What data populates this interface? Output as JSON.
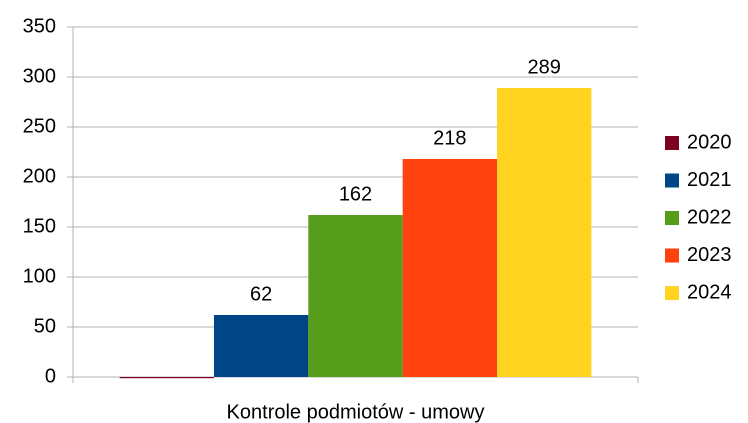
{
  "chart_data": {
    "type": "bar",
    "categories": [
      "Kontrole podmiotów - umowy"
    ],
    "series": [
      {
        "name": "2020",
        "color": "#7e0021",
        "values": [
          0
        ],
        "data_label": false
      },
      {
        "name": "2021",
        "color": "#004586",
        "values": [
          62
        ],
        "data_label": true
      },
      {
        "name": "2022",
        "color": "#579d1c",
        "values": [
          162
        ],
        "data_label": true
      },
      {
        "name": "2023",
        "color": "#ff420e",
        "values": [
          218
        ],
        "data_label": true
      },
      {
        "name": "2024",
        "color": "#ffd320",
        "values": [
          289
        ],
        "data_label": true
      }
    ],
    "ylim": [
      0,
      350
    ],
    "yticks": [
      0,
      50,
      100,
      150,
      200,
      250,
      300,
      350
    ],
    "grid": true,
    "legend": "right"
  }
}
